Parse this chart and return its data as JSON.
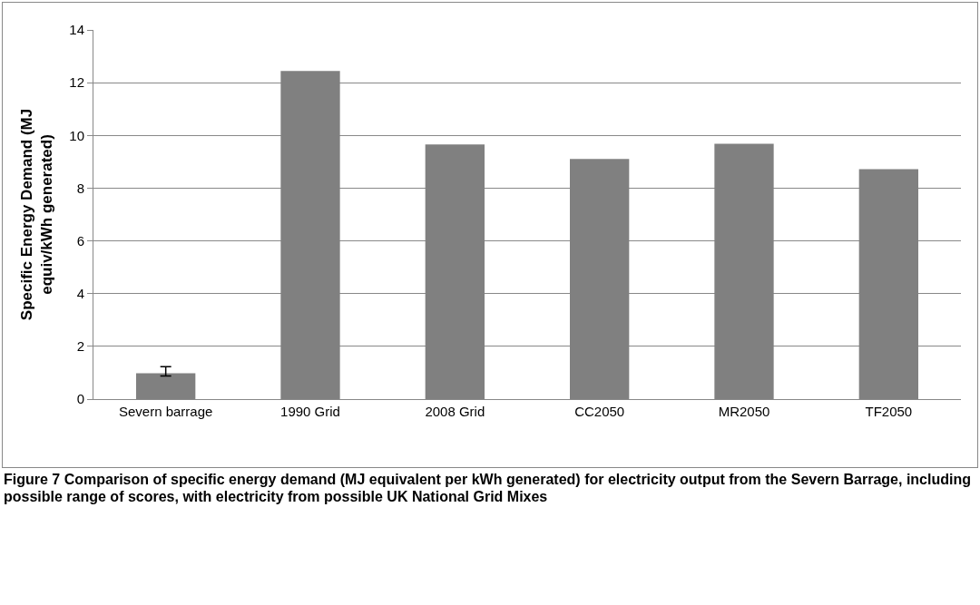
{
  "chart_data": {
    "type": "bar",
    "ylabel": "Specific Energy Demand (MJ equiv/kWh generated)",
    "categories": [
      "Severn barrage",
      "1990 Grid",
      "2008 Grid",
      "CC2050",
      "MR2050",
      "TF2050"
    ],
    "values": [
      0.98,
      12.44,
      9.66,
      9.11,
      9.68,
      8.72
    ],
    "errors": [
      [
        0.88,
        1.23
      ],
      null,
      null,
      null,
      null,
      null
    ],
    "color": "#808080",
    "ylim": [
      0,
      14
    ],
    "yticks": [
      0,
      2,
      4,
      6,
      8,
      10,
      12,
      14
    ],
    "grid": "y",
    "legend": false,
    "annotations": [
      "Figure 7 Comparison of specific energy demand (MJ equivalent per kWh generated) for electricity output from the Severn Barrage, including possible range of scores, with electricity from possible UK National Grid Mixes"
    ]
  }
}
